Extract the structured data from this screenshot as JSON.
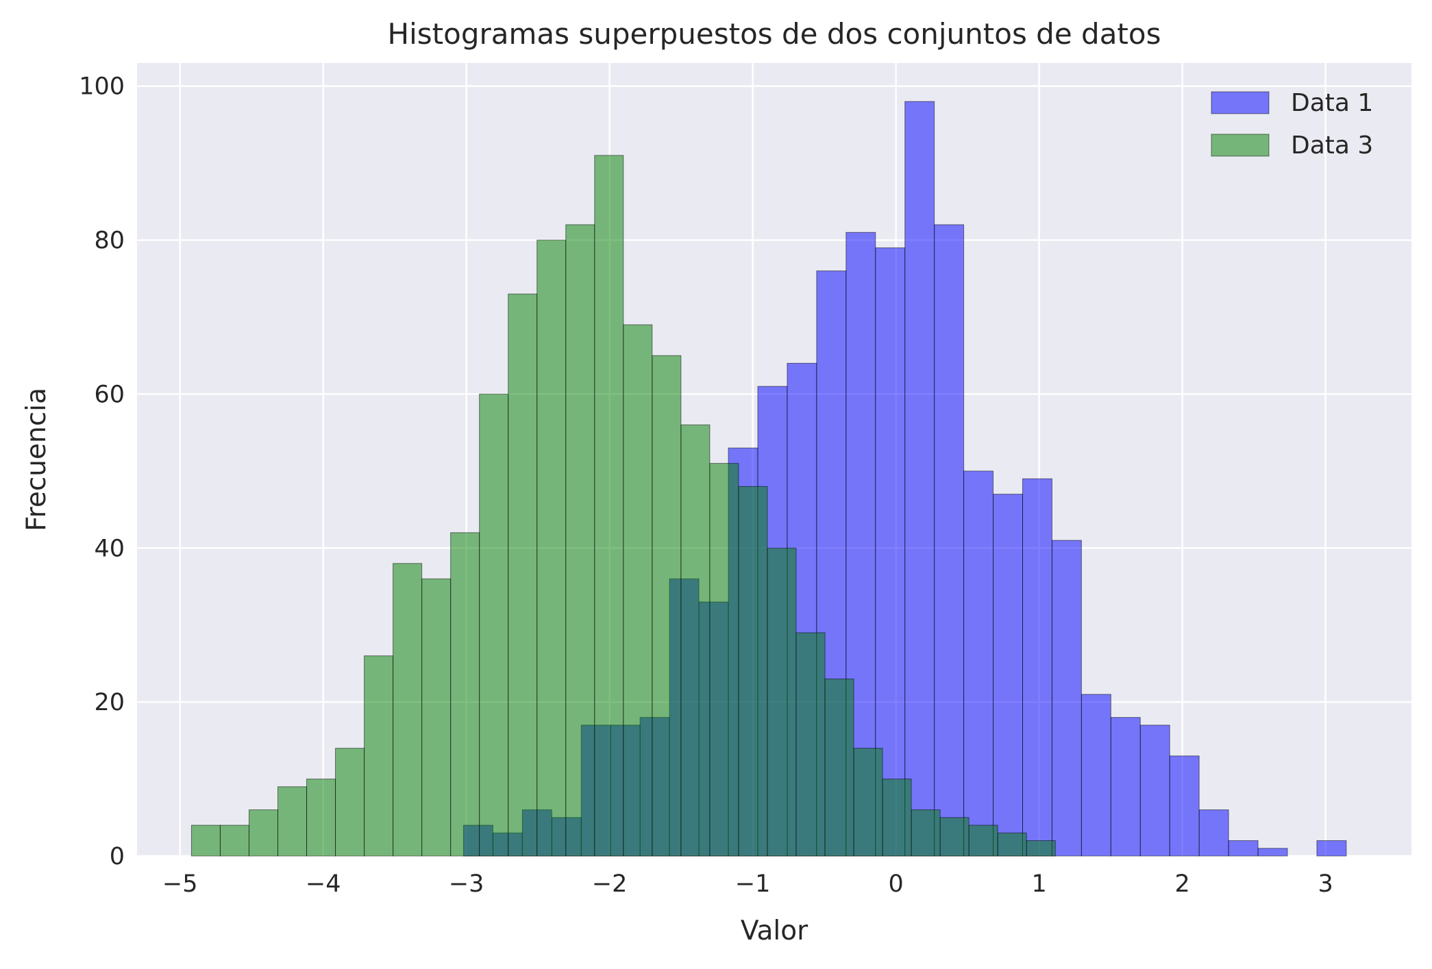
{
  "chart_data": {
    "type": "bar",
    "title": "Histogramas superpuestos de dos conjuntos de datos",
    "xlabel": "Valor",
    "ylabel": "Frecuencia",
    "xlim": [
      -5.3,
      3.6
    ],
    "ylim": [
      0,
      103
    ],
    "x_ticks": [
      -5,
      -4,
      -3,
      -2,
      -1,
      0,
      1,
      2,
      3
    ],
    "x_tick_labels": [
      "−5",
      "−4",
      "−3",
      "−2",
      "−1",
      "0",
      "1",
      "2",
      "3"
    ],
    "y_ticks": [
      0,
      20,
      40,
      60,
      80,
      100
    ],
    "y_tick_labels": [
      "0",
      "20",
      "40",
      "60",
      "80",
      "100"
    ],
    "grid": true,
    "legend_position": "top-right",
    "series": [
      {
        "name": "Data 1",
        "color": "#0000ff",
        "opacity": 0.5,
        "bin_start": -3.02,
        "bin_width": 0.2055,
        "counts": [
          4,
          3,
          6,
          5,
          17,
          17,
          18,
          36,
          33,
          53,
          61,
          64,
          76,
          81,
          79,
          98,
          82,
          50,
          47,
          49,
          41,
          21,
          18,
          17,
          13,
          6,
          2,
          1,
          0,
          2
        ]
      },
      {
        "name": "Data 3",
        "color": "#008000",
        "opacity": 0.5,
        "bin_start": -4.92,
        "bin_width": 0.2011,
        "counts": [
          4,
          4,
          6,
          9,
          10,
          14,
          26,
          38,
          36,
          42,
          60,
          73,
          80,
          82,
          91,
          69,
          65,
          56,
          51,
          48,
          40,
          29,
          23,
          14,
          10,
          6,
          5,
          4,
          3,
          2
        ]
      }
    ]
  }
}
